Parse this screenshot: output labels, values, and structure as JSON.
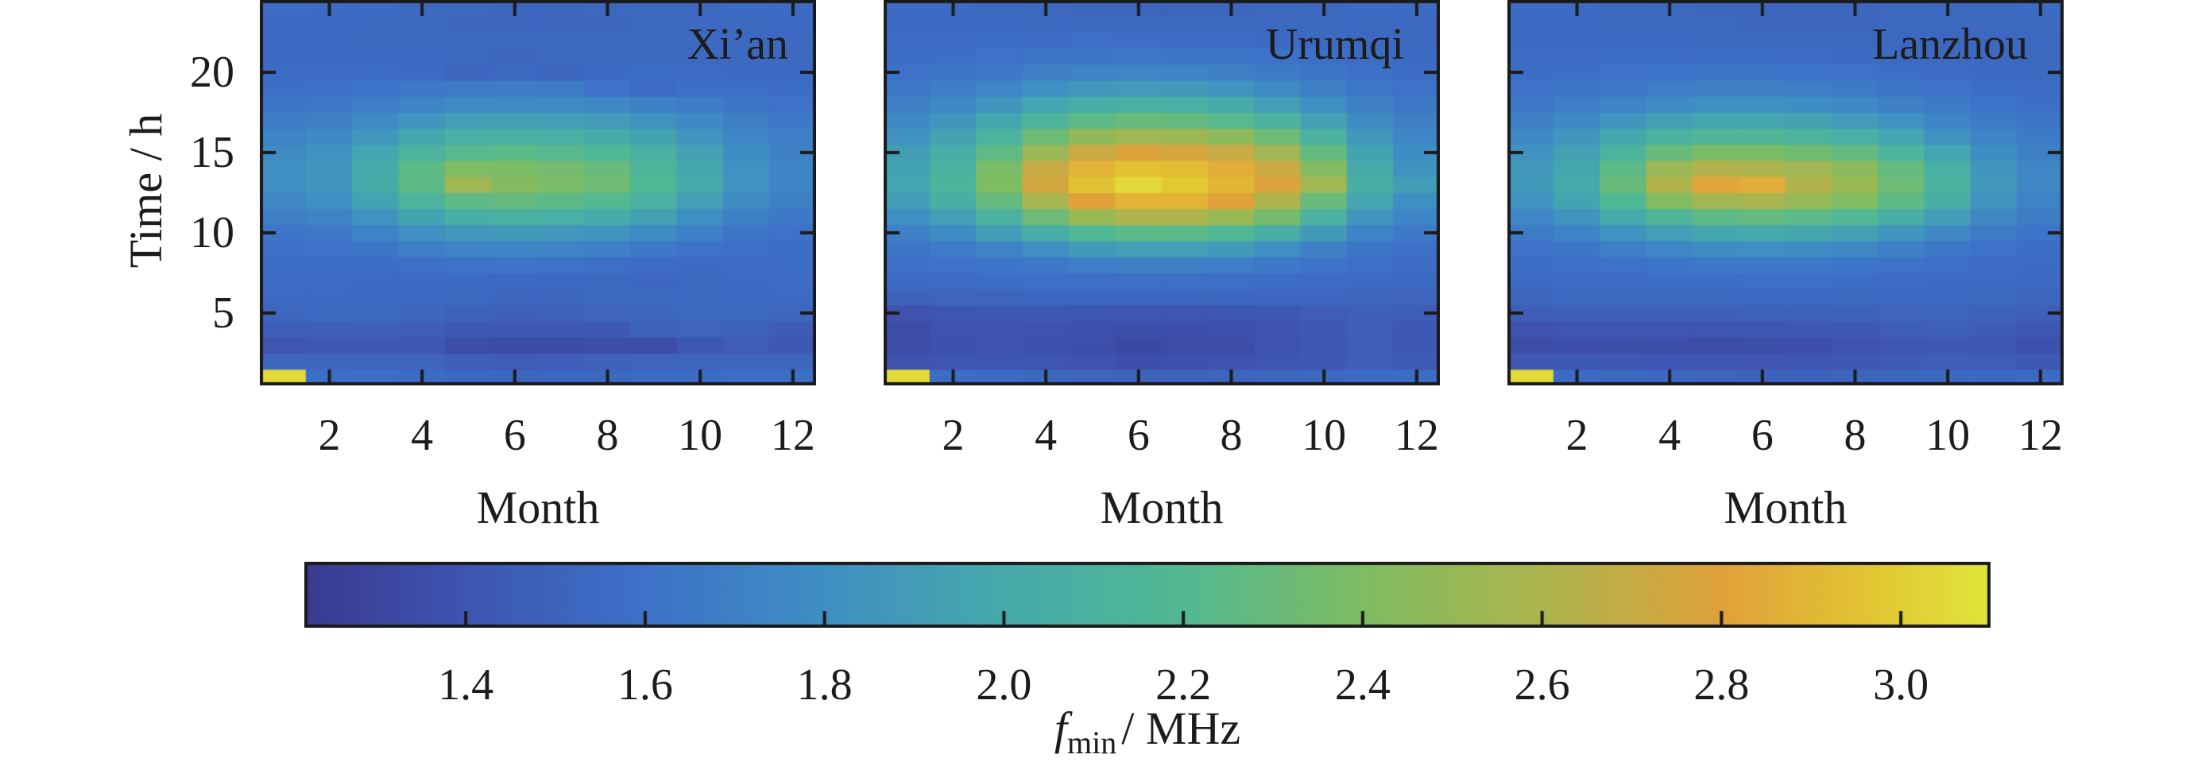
{
  "figure": {
    "background": "#ffffff",
    "text_color": "#1c1c1c",
    "axis_color": "#1a1a1a",
    "panels": [
      {
        "title": "Xi’an"
      },
      {
        "title": "Urumqi"
      },
      {
        "title": "Lanzhou"
      }
    ],
    "x_axis": {
      "label": "Month",
      "ticks": [
        2,
        4,
        6,
        8,
        10,
        12
      ]
    },
    "y_axis": {
      "label": "Time / h",
      "ticks": [
        5,
        10,
        15,
        20
      ]
    },
    "colorbar": {
      "label_symbol": "f",
      "label_subscript": "min",
      "label_unit": "/ MHz",
      "ticks": [
        1.4,
        1.6,
        1.8,
        2.0,
        2.2,
        2.4,
        2.6,
        2.8,
        3.0
      ],
      "min": 1.22,
      "max": 3.1,
      "color_stops": [
        [
          1.22,
          "#3a3a90"
        ],
        [
          1.4,
          "#3e55b2"
        ],
        [
          1.6,
          "#3d72c8"
        ],
        [
          1.8,
          "#3f8fc3"
        ],
        [
          2.0,
          "#46aaab"
        ],
        [
          2.2,
          "#52b992"
        ],
        [
          2.4,
          "#7fbc62"
        ],
        [
          2.6,
          "#adb54e"
        ],
        [
          2.8,
          "#e0a23b"
        ],
        [
          2.95,
          "#e2c233"
        ],
        [
          3.1,
          "#e0e63a"
        ]
      ]
    }
  },
  "chart_data": {
    "type": "heatmap",
    "title": "",
    "xlabel": "Month",
    "ylabel": "Time / h",
    "value_name": "fmin / MHz",
    "x": [
      1,
      2,
      3,
      4,
      5,
      6,
      7,
      8,
      9,
      10,
      11,
      12
    ],
    "y": [
      1,
      2,
      3,
      4,
      5,
      6,
      7,
      8,
      9,
      10,
      11,
      12,
      13,
      14,
      15,
      16,
      17,
      18,
      19,
      20,
      21,
      22,
      23,
      24
    ],
    "row_order": "row index 0 corresponds to hour 1 (bottom row of each panel)",
    "series": [
      {
        "name": "Xi’an",
        "values": [
          [
            3.05,
            1.57,
            1.57,
            1.55,
            1.53,
            1.52,
            1.52,
            1.53,
            1.55,
            1.56,
            1.57,
            1.57
          ],
          [
            1.52,
            1.52,
            1.51,
            1.5,
            1.47,
            1.45,
            1.46,
            1.48,
            1.5,
            1.51,
            1.52,
            1.52
          ],
          [
            1.4,
            1.43,
            1.43,
            1.42,
            1.34,
            1.33,
            1.33,
            1.34,
            1.34,
            1.41,
            1.45,
            1.42
          ],
          [
            1.46,
            1.46,
            1.47,
            1.45,
            1.43,
            1.42,
            1.43,
            1.43,
            1.49,
            1.5,
            1.49,
            1.44
          ],
          [
            1.52,
            1.53,
            1.53,
            1.52,
            1.49,
            1.47,
            1.48,
            1.5,
            1.52,
            1.53,
            1.53,
            1.52
          ],
          [
            1.55,
            1.55,
            1.54,
            1.54,
            1.53,
            1.52,
            1.52,
            1.53,
            1.54,
            1.54,
            1.55,
            1.55
          ],
          [
            1.56,
            1.56,
            1.55,
            1.55,
            1.55,
            1.54,
            1.54,
            1.53,
            1.52,
            1.53,
            1.55,
            1.56
          ],
          [
            1.57,
            1.57,
            1.57,
            1.58,
            1.6,
            1.61,
            1.6,
            1.58,
            1.56,
            1.55,
            1.56,
            1.57
          ],
          [
            1.58,
            1.6,
            1.63,
            1.68,
            1.72,
            1.73,
            1.72,
            1.7,
            1.65,
            1.6,
            1.58,
            1.57
          ],
          [
            1.62,
            1.65,
            1.72,
            1.8,
            1.86,
            1.88,
            1.87,
            1.84,
            1.78,
            1.7,
            1.63,
            1.6
          ],
          [
            1.68,
            1.72,
            1.83,
            1.95,
            2.05,
            2.08,
            2.06,
            2.02,
            1.93,
            1.81,
            1.7,
            1.65
          ],
          [
            1.75,
            1.8,
            1.95,
            2.12,
            2.25,
            2.28,
            2.25,
            2.2,
            2.08,
            1.92,
            1.77,
            1.7
          ],
          [
            1.8,
            1.85,
            2.02,
            2.25,
            2.55,
            2.42,
            2.38,
            2.32,
            2.18,
            2.0,
            1.82,
            1.73
          ],
          [
            1.8,
            1.85,
            2.02,
            2.25,
            2.4,
            2.38,
            2.35,
            2.3,
            2.15,
            1.98,
            1.82,
            1.73
          ],
          [
            1.77,
            1.82,
            1.96,
            2.12,
            2.22,
            2.24,
            2.22,
            2.18,
            2.08,
            1.93,
            1.79,
            1.71
          ],
          [
            1.72,
            1.76,
            1.86,
            1.98,
            2.06,
            2.08,
            2.06,
            2.02,
            1.95,
            1.84,
            1.74,
            1.68
          ],
          [
            1.67,
            1.7,
            1.77,
            1.85,
            1.91,
            1.93,
            1.92,
            1.89,
            1.83,
            1.76,
            1.69,
            1.65
          ],
          [
            1.62,
            1.64,
            1.68,
            1.73,
            1.77,
            1.78,
            1.77,
            1.75,
            1.71,
            1.67,
            1.63,
            1.6
          ],
          [
            1.58,
            1.59,
            1.61,
            1.64,
            1.66,
            1.67,
            1.66,
            1.6,
            1.55,
            1.58,
            1.58,
            1.57
          ],
          [
            1.56,
            1.56,
            1.57,
            1.55,
            1.52,
            1.53,
            1.52,
            1.55,
            1.57,
            1.56,
            1.55,
            1.55
          ],
          [
            1.55,
            1.55,
            1.55,
            1.55,
            1.53,
            1.52,
            1.53,
            1.54,
            1.54,
            1.54,
            1.54,
            1.54
          ],
          [
            1.55,
            1.55,
            1.54,
            1.54,
            1.53,
            1.53,
            1.53,
            1.53,
            1.53,
            1.54,
            1.54,
            1.54
          ],
          [
            1.55,
            1.55,
            1.54,
            1.53,
            1.52,
            1.52,
            1.52,
            1.52,
            1.53,
            1.54,
            1.54,
            1.55
          ],
          [
            1.56,
            1.55,
            1.55,
            1.54,
            1.53,
            1.52,
            1.52,
            1.53,
            1.54,
            1.54,
            1.55,
            1.55
          ]
        ]
      },
      {
        "name": "Urumqi",
        "values": [
          [
            3.05,
            1.56,
            1.55,
            1.53,
            1.5,
            1.48,
            1.48,
            1.5,
            1.52,
            1.54,
            1.55,
            1.56
          ],
          [
            1.38,
            1.4,
            1.41,
            1.4,
            1.38,
            1.36,
            1.37,
            1.38,
            1.4,
            1.43,
            1.46,
            1.44
          ],
          [
            1.34,
            1.37,
            1.38,
            1.37,
            1.36,
            1.32,
            1.34,
            1.35,
            1.38,
            1.42,
            1.45,
            1.42
          ],
          [
            1.35,
            1.38,
            1.39,
            1.38,
            1.37,
            1.35,
            1.36,
            1.37,
            1.39,
            1.43,
            1.46,
            1.43
          ],
          [
            1.38,
            1.41,
            1.42,
            1.42,
            1.41,
            1.4,
            1.4,
            1.41,
            1.42,
            1.45,
            1.47,
            1.45
          ],
          [
            1.48,
            1.5,
            1.51,
            1.52,
            1.52,
            1.52,
            1.52,
            1.52,
            1.52,
            1.52,
            1.52,
            1.5
          ],
          [
            1.55,
            1.56,
            1.57,
            1.58,
            1.58,
            1.58,
            1.58,
            1.58,
            1.57,
            1.56,
            1.55,
            1.54
          ],
          [
            1.58,
            1.6,
            1.62,
            1.65,
            1.68,
            1.7,
            1.7,
            1.68,
            1.65,
            1.61,
            1.58,
            1.56
          ],
          [
            1.62,
            1.66,
            1.72,
            1.8,
            1.88,
            1.92,
            1.92,
            1.88,
            1.8,
            1.7,
            1.63,
            1.59
          ],
          [
            1.7,
            1.78,
            1.9,
            2.05,
            2.18,
            2.24,
            2.24,
            2.18,
            2.05,
            1.88,
            1.72,
            1.65
          ],
          [
            1.8,
            1.92,
            2.1,
            2.32,
            2.52,
            2.6,
            2.6,
            2.52,
            2.35,
            2.1,
            1.85,
            1.73
          ],
          [
            1.9,
            2.05,
            2.28,
            2.58,
            2.8,
            2.88,
            2.88,
            2.8,
            2.6,
            2.3,
            1.96,
            1.8
          ],
          [
            1.96,
            2.12,
            2.4,
            2.75,
            2.95,
            3.05,
            2.98,
            2.9,
            2.78,
            2.55,
            2.05,
            1.9
          ],
          [
            1.95,
            2.1,
            2.38,
            2.7,
            2.88,
            2.95,
            2.92,
            2.85,
            2.72,
            2.42,
            2.02,
            1.83
          ],
          [
            1.9,
            2.03,
            2.26,
            2.52,
            2.72,
            2.78,
            2.76,
            2.7,
            2.55,
            2.28,
            1.95,
            1.79
          ],
          [
            1.83,
            1.94,
            2.12,
            2.32,
            2.48,
            2.55,
            2.53,
            2.46,
            2.32,
            2.1,
            1.87,
            1.74
          ],
          [
            1.76,
            1.85,
            1.98,
            2.13,
            2.25,
            2.3,
            2.28,
            2.22,
            2.1,
            1.93,
            1.78,
            1.69
          ],
          [
            1.7,
            1.76,
            1.85,
            1.96,
            2.04,
            2.08,
            2.06,
            2.01,
            1.92,
            1.8,
            1.7,
            1.64
          ],
          [
            1.64,
            1.68,
            1.74,
            1.81,
            1.86,
            1.89,
            1.88,
            1.84,
            1.77,
            1.7,
            1.64,
            1.6
          ],
          [
            1.6,
            1.62,
            1.65,
            1.69,
            1.72,
            1.74,
            1.73,
            1.7,
            1.66,
            1.62,
            1.59,
            1.57
          ],
          [
            1.57,
            1.58,
            1.6,
            1.62,
            1.63,
            1.64,
            1.63,
            1.62,
            1.6,
            1.58,
            1.56,
            1.55
          ],
          [
            1.56,
            1.56,
            1.57,
            1.57,
            1.58,
            1.58,
            1.57,
            1.56,
            1.55,
            1.55,
            1.54,
            1.54
          ],
          [
            1.55,
            1.55,
            1.55,
            1.54,
            1.54,
            1.53,
            1.53,
            1.53,
            1.53,
            1.54,
            1.54,
            1.54
          ],
          [
            1.55,
            1.55,
            1.54,
            1.53,
            1.52,
            1.51,
            1.51,
            1.52,
            1.53,
            1.54,
            1.55,
            1.55
          ]
        ]
      },
      {
        "name": "Lanzhou",
        "values": [
          [
            3.05,
            1.55,
            1.54,
            1.52,
            1.5,
            1.49,
            1.49,
            1.5,
            1.52,
            1.53,
            1.54,
            1.55
          ],
          [
            1.42,
            1.43,
            1.42,
            1.41,
            1.4,
            1.4,
            1.41,
            1.42,
            1.44,
            1.46,
            1.45,
            1.43
          ],
          [
            1.35,
            1.36,
            1.35,
            1.35,
            1.34,
            1.35,
            1.36,
            1.38,
            1.4,
            1.43,
            1.4,
            1.37
          ],
          [
            1.38,
            1.4,
            1.4,
            1.4,
            1.4,
            1.41,
            1.42,
            1.43,
            1.45,
            1.47,
            1.44,
            1.41
          ],
          [
            1.46,
            1.47,
            1.47,
            1.47,
            1.47,
            1.48,
            1.48,
            1.49,
            1.5,
            1.51,
            1.49,
            1.47
          ],
          [
            1.52,
            1.53,
            1.53,
            1.53,
            1.53,
            1.54,
            1.54,
            1.54,
            1.54,
            1.54,
            1.53,
            1.52
          ],
          [
            1.55,
            1.56,
            1.56,
            1.57,
            1.57,
            1.58,
            1.58,
            1.57,
            1.56,
            1.55,
            1.55,
            1.54
          ],
          [
            1.57,
            1.58,
            1.6,
            1.62,
            1.64,
            1.65,
            1.64,
            1.62,
            1.6,
            1.58,
            1.56,
            1.55
          ],
          [
            1.6,
            1.63,
            1.68,
            1.74,
            1.78,
            1.8,
            1.78,
            1.75,
            1.7,
            1.64,
            1.6,
            1.57
          ],
          [
            1.66,
            1.72,
            1.82,
            1.92,
            1.98,
            2.0,
            1.98,
            1.93,
            1.85,
            1.75,
            1.66,
            1.61
          ],
          [
            1.74,
            1.84,
            2.0,
            2.15,
            2.25,
            2.28,
            2.24,
            2.18,
            2.05,
            1.9,
            1.75,
            1.67
          ],
          [
            1.82,
            1.95,
            2.18,
            2.42,
            2.55,
            2.58,
            2.5,
            2.4,
            2.25,
            2.05,
            1.83,
            1.72
          ],
          [
            1.88,
            2.0,
            2.3,
            2.62,
            2.82,
            2.85,
            2.62,
            2.52,
            2.32,
            2.1,
            1.87,
            1.75
          ],
          [
            1.86,
            1.98,
            2.25,
            2.52,
            2.62,
            2.6,
            2.55,
            2.45,
            2.28,
            2.06,
            1.85,
            1.74
          ],
          [
            1.82,
            1.93,
            2.12,
            2.3,
            2.38,
            2.38,
            2.34,
            2.27,
            2.14,
            1.96,
            1.79,
            1.7
          ],
          [
            1.76,
            1.85,
            1.98,
            2.1,
            2.16,
            2.16,
            2.12,
            2.06,
            1.96,
            1.83,
            1.72,
            1.66
          ],
          [
            1.7,
            1.76,
            1.85,
            1.93,
            1.97,
            1.97,
            1.94,
            1.89,
            1.82,
            1.73,
            1.66,
            1.62
          ],
          [
            1.64,
            1.68,
            1.73,
            1.78,
            1.81,
            1.81,
            1.79,
            1.76,
            1.71,
            1.66,
            1.61,
            1.58
          ],
          [
            1.6,
            1.62,
            1.65,
            1.68,
            1.7,
            1.7,
            1.69,
            1.66,
            1.63,
            1.6,
            1.57,
            1.56
          ],
          [
            1.57,
            1.58,
            1.6,
            1.61,
            1.62,
            1.62,
            1.61,
            1.6,
            1.58,
            1.56,
            1.55,
            1.54
          ],
          [
            1.56,
            1.56,
            1.57,
            1.57,
            1.57,
            1.57,
            1.56,
            1.55,
            1.55,
            1.54,
            1.54,
            1.53
          ],
          [
            1.55,
            1.55,
            1.55,
            1.55,
            1.54,
            1.54,
            1.53,
            1.53,
            1.53,
            1.53,
            1.53,
            1.53
          ],
          [
            1.55,
            1.55,
            1.54,
            1.54,
            1.53,
            1.52,
            1.52,
            1.52,
            1.53,
            1.53,
            1.54,
            1.54
          ],
          [
            1.55,
            1.55,
            1.54,
            1.53,
            1.52,
            1.51,
            1.52,
            1.52,
            1.53,
            1.54,
            1.54,
            1.55
          ]
        ]
      }
    ]
  }
}
